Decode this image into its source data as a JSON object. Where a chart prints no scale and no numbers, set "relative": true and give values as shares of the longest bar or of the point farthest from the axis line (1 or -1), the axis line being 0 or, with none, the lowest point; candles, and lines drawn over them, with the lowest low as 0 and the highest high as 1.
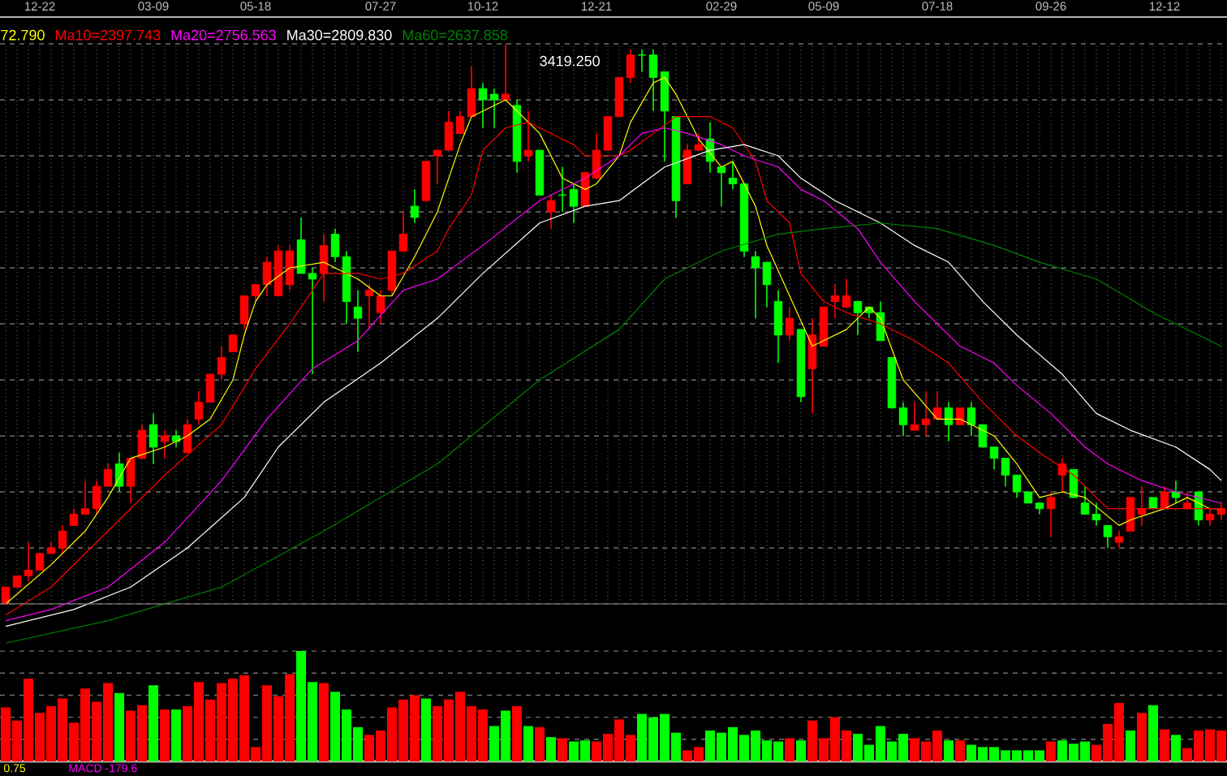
{
  "chart_data": [
    {
      "type": "candlestick",
      "relative": true,
      "grid": true,
      "legend": "top left",
      "tick_labels": "x",
      "categories": [
        null,
        null,
        null,
        "12-22",
        null,
        null,
        null,
        null,
        null,
        null,
        null,
        null,
        null,
        "03-09",
        null,
        null,
        null,
        null,
        null,
        null,
        null,
        null,
        "05-18",
        null,
        null,
        null,
        null,
        null,
        null,
        null,
        null,
        null,
        null,
        "07-27",
        null,
        null,
        null,
        null,
        null,
        null,
        null,
        null,
        "10-12",
        null,
        null,
        null,
        null,
        null,
        null,
        null,
        null,
        null,
        "12-21",
        null,
        null,
        null,
        null,
        null,
        null,
        null,
        null,
        null,
        null,
        "02-29",
        null,
        null,
        null,
        null,
        null,
        null,
        null,
        null,
        "05-09",
        null,
        null,
        null,
        null,
        null,
        null,
        null,
        null,
        null,
        "07-18",
        null,
        null,
        null,
        null,
        null,
        null,
        null,
        null,
        null,
        "09-26",
        null,
        null,
        null,
        null,
        null,
        null,
        null,
        null,
        null,
        "12-12",
        null,
        null,
        null,
        null,
        null
      ],
      "ohlc": [
        [
          0.0,
          0.03,
          0,
          0.03
        ],
        [
          0.03,
          0.05,
          0.03,
          0.05
        ],
        [
          0.05,
          0.11,
          0.04,
          0.06
        ],
        [
          0.06,
          0.09,
          0.06,
          0.09
        ],
        [
          0.09,
          0.11,
          0.09,
          0.1
        ],
        [
          0.1,
          0.14,
          0.09,
          0.13
        ],
        [
          0.14,
          0.17,
          0.14,
          0.16
        ],
        [
          0.16,
          0.22,
          0.16,
          0.17
        ],
        [
          0.17,
          0.22,
          0.16,
          0.21
        ],
        [
          0.21,
          0.25,
          0.21,
          0.24
        ],
        [
          0.25,
          0.27,
          0.2,
          0.21
        ],
        [
          0.21,
          0.26,
          0.18,
          0.26
        ],
        [
          0.26,
          0.32,
          0.26,
          0.31
        ],
        [
          0.32,
          0.34,
          0.25,
          0.28
        ],
        [
          0.29,
          0.31,
          0.26,
          0.3
        ],
        [
          0.3,
          0.31,
          0.28,
          0.29
        ],
        [
          0.27,
          0.33,
          0.27,
          0.32
        ],
        [
          0.33,
          0.38,
          0.32,
          0.36
        ],
        [
          0.36,
          0.41,
          0.36,
          0.41
        ],
        [
          0.41,
          0.46,
          0.4,
          0.44
        ],
        [
          0.45,
          0.48,
          0.45,
          0.48
        ],
        [
          0.5,
          0.55,
          0.49,
          0.55
        ],
        [
          0.55,
          0.57,
          0.54,
          0.57
        ],
        [
          0.57,
          0.62,
          0.55,
          0.61
        ],
        [
          0.55,
          0.64,
          0.55,
          0.63
        ],
        [
          0.57,
          0.64,
          0.56,
          0.63
        ],
        [
          0.65,
          0.69,
          0.59,
          0.59
        ],
        [
          0.59,
          0.6,
          0.41,
          0.58
        ],
        [
          0.59,
          0.66,
          0.54,
          0.64
        ],
        [
          0.66,
          0.67,
          0.61,
          0.62
        ],
        [
          0.62,
          0.63,
          0.5,
          0.54
        ],
        [
          0.53,
          0.56,
          0.45,
          0.51
        ],
        [
          0.55,
          0.57,
          0.49,
          0.56
        ],
        [
          0.52,
          0.56,
          0.5,
          0.55
        ],
        [
          0.56,
          0.63,
          0.55,
          0.63
        ],
        [
          0.63,
          0.7,
          0.63,
          0.66
        ],
        [
          0.71,
          0.74,
          0.68,
          0.69
        ],
        [
          0.72,
          0.79,
          0.72,
          0.79
        ],
        [
          0.8,
          0.81,
          0.75,
          0.81
        ],
        [
          0.81,
          0.88,
          0.81,
          0.86
        ],
        [
          0.84,
          0.88,
          0.84,
          0.87
        ],
        [
          0.87,
          0.96,
          0.87,
          0.92
        ],
        [
          0.92,
          0.93,
          0.85,
          0.9
        ],
        [
          0.91,
          0.92,
          0.85,
          0.9
        ],
        [
          0.9,
          1,
          0.9,
          0.91
        ],
        [
          0.89,
          0.9,
          0.77,
          0.79
        ],
        [
          0.8,
          0.88,
          0.79,
          0.81
        ],
        [
          0.81,
          0.81,
          0.73,
          0.73
        ],
        [
          0.7,
          0.73,
          0.67,
          0.72
        ],
        [
          0.73,
          0.78,
          0.7,
          0.73
        ],
        [
          0.74,
          0.75,
          0.68,
          0.71
        ],
        [
          0.71,
          0.77,
          0.71,
          0.77
        ],
        [
          0.76,
          0.84,
          0.76,
          0.81
        ],
        [
          0.81,
          0.87,
          0.81,
          0.87
        ],
        [
          0.87,
          0.94,
          0.87,
          0.94
        ],
        [
          0.94,
          0.99,
          0.93,
          0.98
        ],
        [
          0.98,
          0.99,
          0.95,
          0.98
        ],
        [
          0.98,
          0.99,
          0.88,
          0.94
        ],
        [
          0.95,
          0.95,
          0.79,
          0.88
        ],
        [
          0.87,
          0.87,
          0.69,
          0.72
        ],
        [
          0.75,
          0.82,
          0.75,
          0.81
        ],
        [
          0.81,
          0.84,
          0.81,
          0.82
        ],
        [
          0.83,
          0.86,
          0.77,
          0.79
        ],
        [
          0.78,
          0.78,
          0.71,
          0.77
        ],
        [
          0.76,
          0.79,
          0.74,
          0.75
        ],
        [
          0.75,
          0.75,
          0.62,
          0.63
        ],
        [
          0.62,
          0.63,
          0.51,
          0.6
        ],
        [
          0.61,
          0.61,
          0.53,
          0.57
        ],
        [
          0.54,
          0.56,
          0.43,
          0.48
        ],
        [
          0.48,
          0.53,
          0.47,
          0.51
        ],
        [
          0.49,
          0.49,
          0.36,
          0.37
        ],
        [
          0.42,
          0.51,
          0.34,
          0.48
        ],
        [
          0.46,
          0.53,
          0.46,
          0.53
        ],
        [
          0.54,
          0.57,
          0.51,
          0.55
        ],
        [
          0.53,
          0.58,
          0.53,
          0.55
        ],
        [
          0.54,
          0.54,
          0.48,
          0.52
        ],
        [
          0.53,
          0.53,
          0.51,
          0.52
        ],
        [
          0.52,
          0.54,
          0.47,
          0.47
        ],
        [
          0.44,
          0.44,
          0.35,
          0.35
        ],
        [
          0.35,
          0.36,
          0.3,
          0.32
        ],
        [
          0.31,
          0.36,
          0.31,
          0.32
        ],
        [
          0.32,
          0.38,
          0.3,
          0.33
        ],
        [
          0.33,
          0.38,
          0.33,
          0.35
        ],
        [
          0.35,
          0.36,
          0.29,
          0.32
        ],
        [
          0.32,
          0.35,
          0.32,
          0.35
        ],
        [
          0.35,
          0.36,
          0.3,
          0.32
        ],
        [
          0.32,
          0.32,
          0.28,
          0.28
        ],
        [
          0.28,
          0.28,
          0.24,
          0.26
        ],
        [
          0.26,
          0.26,
          0.21,
          0.23
        ],
        [
          0.23,
          0.23,
          0.19,
          0.2
        ],
        [
          0.2,
          0.2,
          0.18,
          0.18
        ],
        [
          0.18,
          0.18,
          0.16,
          0.17
        ],
        [
          0.17,
          0.2,
          0.12,
          0.19
        ],
        [
          0.23,
          0.26,
          0.2,
          0.25
        ],
        [
          0.24,
          0.24,
          0.19,
          0.19
        ],
        [
          0.18,
          0.21,
          0.16,
          0.16
        ],
        [
          0.16,
          0.18,
          0.14,
          0.15
        ],
        [
          0.14,
          0.14,
          0.1,
          0.12
        ],
        [
          0.11,
          0.13,
          0.1,
          0.12
        ],
        [
          0.13,
          0.19,
          0.13,
          0.19
        ],
        [
          0.16,
          0.21,
          0.14,
          0.17
        ],
        [
          0.19,
          0.19,
          0.17,
          0.17
        ],
        [
          0.17,
          0.21,
          0.17,
          0.2
        ],
        [
          0.2,
          0.22,
          0.18,
          0.19
        ],
        [
          0.17,
          0.2,
          0.17,
          0.18
        ],
        [
          0.2,
          0.2,
          0.14,
          0.15
        ],
        [
          0.15,
          0.17,
          0.14,
          0.16
        ],
        [
          0.16,
          0.18,
          0.15,
          0.17
        ]
      ],
      "colors": [
        "#ff0000",
        "#ff0000",
        "#ff0000",
        "#ff0000",
        "#ff0000",
        "#ff0000",
        "#ff0000",
        "#ff0000",
        "#ff0000",
        "#ff0000",
        "#00ff00",
        "#ff0000",
        "#ff0000",
        "#00ff00",
        "#ff0000",
        "#00ff00",
        "#ff0000",
        "#ff0000",
        "#ff0000",
        "#ff0000",
        "#ff0000",
        "#ff0000",
        "#ff0000",
        "#ff0000",
        "#ff0000",
        "#ff0000",
        "#00ff00",
        "#00ff00",
        "#ff0000",
        "#00ff00",
        "#00ff00",
        "#00ff00",
        "#ff0000",
        "#ff0000",
        "#ff0000",
        "#ff0000",
        "#00ff00",
        "#ff0000",
        "#ff0000",
        "#ff0000",
        "#ff0000",
        "#ff0000",
        "#00ff00",
        "#00ff00",
        "#ff0000",
        "#00ff00",
        "#ff0000",
        "#00ff00",
        "#ff0000",
        "#00ff00",
        "#00ff00",
        "#ff0000",
        "#ff0000",
        "#ff0000",
        "#ff0000",
        "#ff0000",
        "#00ff00",
        "#00ff00",
        "#00ff00",
        "#00ff00",
        "#ff0000",
        "#ff0000",
        "#00ff00",
        "#00ff00",
        "#00ff00",
        "#00ff00",
        "#00ff00",
        "#00ff00",
        "#00ff00",
        "#ff0000",
        "#00ff00",
        "#ff0000",
        "#ff0000",
        "#ff0000",
        "#ff0000",
        "#00ff00",
        "#00ff00",
        "#00ff00",
        "#00ff00",
        "#00ff00",
        "#ff0000",
        "#ff0000",
        "#ff0000",
        "#00ff00",
        "#ff0000",
        "#00ff00",
        "#00ff00",
        "#00ff00",
        "#00ff00",
        "#00ff00",
        "#00ff00",
        "#00ff00",
        "#ff0000",
        "#ff0000",
        "#00ff00",
        "#00ff00",
        "#00ff00",
        "#00ff00",
        "#ff0000",
        "#ff0000",
        "#ff0000",
        "#00ff00",
        "#ff0000",
        "#00ff00",
        "#ff0000",
        "#00ff00",
        "#ff0000",
        "#ff0000"
      ],
      "series": [
        {
          "name": "72.790",
          "type": "line",
          "color": "#ffff00",
          "values": [
            0,
            null,
            null,
            null,
            0.07,
            null,
            null,
            0.13,
            null,
            0.19,
            null,
            0.26,
            null,
            null,
            0.28,
            null,
            0.3,
            null,
            0.33,
            null,
            0.4,
            0.48,
            0.54,
            0.57,
            null,
            0.6,
            null,
            null,
            0.61,
            0.6,
            null,
            0.58,
            null,
            0.55,
            0.55,
            null,
            0.62,
            null,
            0.7,
            null,
            0.82,
            0.87,
            null,
            null,
            0.9,
            0.88,
            null,
            0.84,
            null,
            0.76,
            null,
            0.74,
            0.75,
            null,
            0.8,
            0.86,
            null,
            0.93,
            0.94,
            0.91,
            null,
            0.83,
            null,
            0.78,
            0.79,
            null,
            0.71,
            0.64,
            null,
            0.55,
            null,
            0.46,
            null,
            null,
            0.49,
            null,
            0.53,
            0.51,
            null,
            0.4,
            null,
            null,
            0.33,
            null,
            0.33,
            null,
            null,
            0.3,
            null,
            0.25,
            null,
            0.19,
            null,
            0.2,
            null,
            0.19,
            null,
            null,
            0.14,
            0.15,
            null,
            null,
            0.17,
            null,
            0.19,
            null,
            0.17,
            0.17
          ]
        },
        {
          "name": "Ma10=2397.743",
          "type": "line",
          "color": "#ff0000",
          "values": [
            -0.02,
            null,
            null,
            null,
            0.03,
            null,
            null,
            null,
            null,
            0.13,
            null,
            null,
            null,
            null,
            0.23,
            null,
            null,
            null,
            null,
            0.32,
            null,
            null,
            0.42,
            null,
            null,
            0.5,
            null,
            0.56,
            0.59,
            null,
            null,
            0.59,
            null,
            0.58,
            null,
            0.59,
            null,
            null,
            0.63,
            0.67,
            null,
            0.73,
            0.81,
            null,
            0.85,
            null,
            0.86,
            null,
            null,
            null,
            0.82,
            0.8,
            null,
            null,
            0.8,
            0.81,
            null,
            0.84,
            null,
            0.87,
            null,
            null,
            0.87,
            null,
            0.85,
            null,
            0.79,
            0.72,
            null,
            0.68,
            0.59,
            null,
            0.54,
            null,
            0.52,
            null,
            null,
            0.5,
            null,
            null,
            0.47,
            null,
            null,
            0.43,
            null,
            null,
            0.36,
            null,
            null,
            0.3,
            null,
            0.27,
            null,
            null,
            0.23,
            null,
            null,
            0.17,
            null,
            null,
            0.17,
            null,
            null,
            0.17,
            null,
            null,
            null,
            0.17
          ]
        },
        {
          "name": "Ma20=2756.563",
          "type": "line",
          "color": "#ff00ff",
          "values": [
            -0.03,
            null,
            null,
            null,
            -0.01,
            null,
            null,
            null,
            null,
            0.03,
            null,
            null,
            null,
            null,
            0.11,
            null,
            null,
            null,
            null,
            0.22,
            null,
            null,
            null,
            0.33,
            null,
            null,
            null,
            0.42,
            null,
            null,
            null,
            0.47,
            null,
            null,
            null,
            0.56,
            null,
            null,
            0.58,
            null,
            null,
            null,
            0.64,
            null,
            null,
            null,
            null,
            0.72,
            null,
            null,
            null,
            0.76,
            null,
            null,
            0.8,
            null,
            0.84,
            null,
            0.85,
            null,
            0.84,
            null,
            null,
            0.82,
            null,
            0.8,
            null,
            null,
            0.78,
            null,
            0.74,
            null,
            0.72,
            null,
            null,
            0.67,
            null,
            0.61,
            null,
            null,
            0.54,
            null,
            0.5,
            null,
            0.46,
            null,
            null,
            0.43,
            null,
            0.39,
            null,
            null,
            0.34,
            null,
            null,
            0.28,
            null,
            0.25,
            null,
            null,
            0.22,
            null,
            null,
            0.2,
            null,
            null,
            null,
            0.18
          ]
        },
        {
          "name": "Ma30=2809.830",
          "type": "line",
          "color": "#ffffff",
          "values": [
            -0.04,
            null,
            null,
            null,
            null,
            null,
            -0.01,
            null,
            null,
            null,
            null,
            0.03,
            null,
            null,
            null,
            null,
            0.1,
            null,
            null,
            null,
            null,
            0.19,
            null,
            null,
            0.28,
            null,
            null,
            null,
            0.36,
            null,
            null,
            null,
            null,
            0.43,
            null,
            null,
            null,
            null,
            0.51,
            null,
            null,
            null,
            0.59,
            null,
            null,
            null,
            null,
            0.68,
            null,
            null,
            null,
            0.71,
            null,
            null,
            0.72,
            null,
            null,
            null,
            0.78,
            null,
            null,
            null,
            0.81,
            null,
            null,
            0.82,
            null,
            null,
            0.8,
            null,
            0.76,
            null,
            null,
            0.72,
            null,
            null,
            null,
            0.68,
            null,
            null,
            0.64,
            null,
            null,
            0.61,
            null,
            null,
            0.54,
            null,
            null,
            0.48,
            null,
            null,
            null,
            0.41,
            null,
            null,
            0.34,
            null,
            null,
            0.31,
            null,
            null,
            null,
            0.28,
            null,
            null,
            0.24,
            0.22
          ]
        },
        {
          "name": "Ma60=2637.858",
          "type": "line",
          "color": "#008000",
          "values": [
            -0.07,
            null,
            null,
            null,
            null,
            null,
            null,
            null,
            null,
            -0.03,
            null,
            null,
            null,
            null,
            null,
            null,
            null,
            null,
            null,
            0.03,
            null,
            null,
            null,
            null,
            null,
            null,
            null,
            null,
            0.13,
            null,
            null,
            null,
            null,
            null,
            null,
            null,
            null,
            null,
            0.25,
            null,
            null,
            null,
            null,
            null,
            null,
            null,
            null,
            0.4,
            null,
            null,
            null,
            null,
            null,
            null,
            0.49,
            null,
            null,
            null,
            0.58,
            null,
            null,
            null,
            null,
            0.63,
            null,
            null,
            null,
            null,
            0.66,
            null,
            null,
            null,
            0.67,
            null,
            null,
            null,
            null,
            0.68,
            null,
            null,
            null,
            null,
            0.67,
            null,
            null,
            null,
            null,
            0.64,
            null,
            null,
            null,
            0.61,
            null,
            null,
            null,
            null,
            0.58,
            null,
            null,
            null,
            null,
            0.52,
            null,
            null,
            null,
            0.48,
            null,
            0.46
          ]
        }
      ],
      "annotations": [
        "3419.250"
      ]
    },
    {
      "type": "bar",
      "relative": true,
      "grid": "y",
      "tick_labels": false,
      "categories": [
        null,
        null,
        null,
        null,
        null,
        null,
        null,
        null,
        null,
        null,
        null,
        null,
        null,
        null,
        null,
        null,
        null,
        null,
        null,
        null,
        null,
        null,
        null,
        null,
        null,
        null,
        null,
        null,
        null,
        null,
        null,
        null,
        null,
        null,
        null,
        null,
        null,
        null,
        null,
        null,
        null,
        null,
        null,
        null,
        null,
        null,
        null,
        null,
        null,
        null,
        null,
        null,
        null,
        null,
        null,
        null,
        null,
        null,
        null,
        null,
        null,
        null,
        null,
        null,
        null,
        null,
        null,
        null,
        null,
        null,
        null,
        null,
        null,
        null,
        null,
        null,
        null,
        null,
        null,
        null,
        null,
        null,
        null,
        null,
        null,
        null,
        null,
        null,
        null,
        null,
        null,
        null,
        null,
        null,
        null,
        null,
        null,
        null,
        null,
        null,
        null,
        null,
        null,
        null,
        null,
        null,
        null,
        null
      ],
      "values": [
        0.49,
        0.37,
        0.75,
        0.44,
        0.5,
        0.57,
        0.35,
        0.66,
        0.54,
        0.71,
        0.62,
        0.46,
        0.51,
        0.69,
        0.47,
        0.47,
        0.5,
        0.72,
        0.56,
        0.71,
        0.75,
        0.78,
        0.13,
        0.69,
        0.59,
        0.79,
        1,
        0.72,
        0.71,
        0.63,
        0.47,
        0.31,
        0.24,
        0.28,
        0.49,
        0.56,
        0.6,
        0.57,
        0.5,
        0.56,
        0.63,
        0.5,
        0.47,
        0.32,
        0.46,
        0.5,
        0.32,
        0.31,
        0.22,
        0.21,
        0.18,
        0.19,
        0.18,
        0.25,
        0.38,
        0.24,
        0.43,
        0.4,
        0.43,
        0.26,
        0.1,
        0.13,
        0.28,
        0.26,
        0.31,
        0.24,
        0.28,
        0.19,
        0.18,
        0.21,
        0.19,
        0.37,
        0.21,
        0.4,
        0.28,
        0.25,
        0.15,
        0.32,
        0.18,
        0.25,
        0.21,
        0.18,
        0.28,
        0.19,
        0.19,
        0.15,
        0.13,
        0.13,
        0.1,
        0.1,
        0.1,
        0.1,
        0.18,
        0.19,
        0.16,
        0.18,
        0.15,
        0.34,
        0.53,
        0.28,
        0.44,
        0.51,
        0.29,
        0.24,
        0.12,
        0.28,
        0.29,
        0.28
      ],
      "colors": [
        "#ff0000",
        "#ff0000",
        "#ff0000",
        "#ff0000",
        "#ff0000",
        "#ff0000",
        "#ff0000",
        "#ff0000",
        "#ff0000",
        "#ff0000",
        "#00ff00",
        "#ff0000",
        "#ff0000",
        "#00ff00",
        "#ff0000",
        "#00ff00",
        "#ff0000",
        "#ff0000",
        "#ff0000",
        "#ff0000",
        "#ff0000",
        "#ff0000",
        "#ff0000",
        "#ff0000",
        "#ff0000",
        "#ff0000",
        "#00ff00",
        "#00ff00",
        "#ff0000",
        "#00ff00",
        "#00ff00",
        "#00ff00",
        "#ff0000",
        "#ff0000",
        "#ff0000",
        "#ff0000",
        "#ff0000",
        "#00ff00",
        "#ff0000",
        "#ff0000",
        "#ff0000",
        "#ff0000",
        "#ff0000",
        "#00ff00",
        "#00ff00",
        "#ff0000",
        "#00ff00",
        "#ff0000",
        "#00ff00",
        "#ff0000",
        "#00ff00",
        "#00ff00",
        "#ff0000",
        "#ff0000",
        "#ff0000",
        "#ff0000",
        "#00ff00",
        "#00ff00",
        "#00ff00",
        "#00ff00",
        "#ff0000",
        "#ff0000",
        "#00ff00",
        "#00ff00",
        "#00ff00",
        "#00ff00",
        "#00ff00",
        "#00ff00",
        "#00ff00",
        "#ff0000",
        "#00ff00",
        "#ff0000",
        "#ff0000",
        "#ff0000",
        "#ff0000",
        "#00ff00",
        "#00ff00",
        "#00ff00",
        "#00ff00",
        "#00ff00",
        "#ff0000",
        "#ff0000",
        "#ff0000",
        "#00ff00",
        "#ff0000",
        "#00ff00",
        "#00ff00",
        "#00ff00",
        "#00ff00",
        "#00ff00",
        "#00ff00",
        "#00ff00",
        "#ff0000",
        "#00ff00",
        "#00ff00",
        "#00ff00",
        "#ff0000",
        "#ff0000",
        "#ff0000",
        "#00ff00",
        "#ff0000",
        "#00ff00",
        "#ff0000",
        "#00ff00",
        "#ff0000",
        "#ff0000",
        "#ff0000",
        "#ff0000"
      ],
      "annotations": [
        "0.75",
        "MACD -179.6"
      ]
    }
  ]
}
